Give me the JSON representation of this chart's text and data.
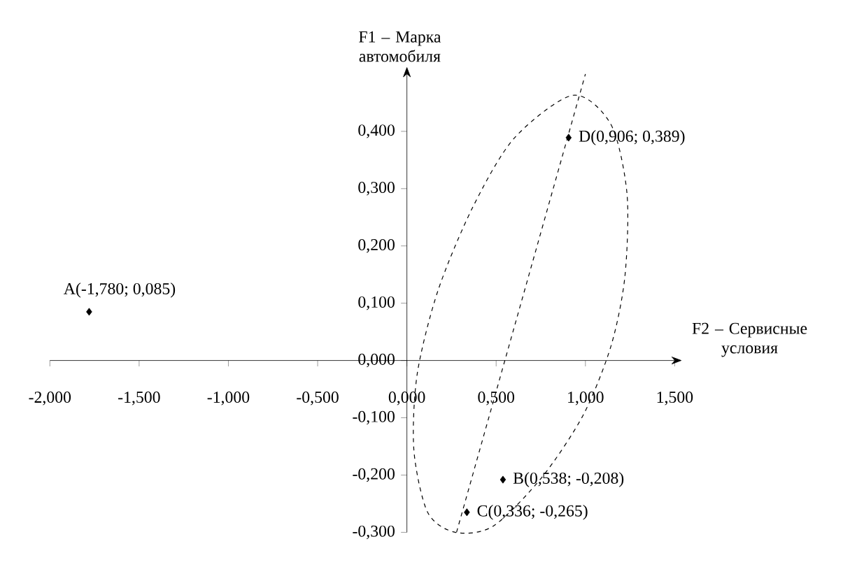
{
  "chart_data": {
    "type": "scatter",
    "xlabel": "F2 – Сервисные условия",
    "ylabel": "F1 – Марка автомобиля",
    "xlim": [
      -2,
      1.5
    ],
    "ylim": [
      -0.3,
      0.5
    ],
    "xticks": [
      {
        "value": -2,
        "label": "-2,000"
      },
      {
        "value": -1.5,
        "label": "-1,500"
      },
      {
        "value": -1,
        "label": "-1,000"
      },
      {
        "value": -0.5,
        "label": "-0,500"
      },
      {
        "value": 0,
        "label": "0,000"
      },
      {
        "value": 0.5,
        "label": "0,500"
      },
      {
        "value": 1,
        "label": "1,000"
      },
      {
        "value": 1.5,
        "label": "1,500"
      }
    ],
    "yticks": [
      {
        "value": -0.3,
        "label": "-0,300"
      },
      {
        "value": -0.2,
        "label": "-0,200"
      },
      {
        "value": -0.1,
        "label": "-0,100"
      },
      {
        "value": 0,
        "label": "0,000"
      },
      {
        "value": 0.1,
        "label": "0,100"
      },
      {
        "value": 0.2,
        "label": "0,200"
      },
      {
        "value": 0.3,
        "label": "0,300"
      },
      {
        "value": 0.4,
        "label": "0,400"
      }
    ],
    "series": [
      {
        "marker": "diamond",
        "color": "#000000",
        "x": [
          -1.78,
          0.538,
          0.336,
          0.906
        ],
        "values": [
          0.085,
          -0.208,
          -0.265,
          0.389
        ]
      },
      {
        "type": "line",
        "color": "#000000",
        "line_style": "dashed",
        "x": [
          0.278,
          1.0
        ],
        "values": [
          -0.3,
          0.5
        ]
      }
    ],
    "annotations": [
      {
        "text": "A(-1,780; 0,085)",
        "x": -1.78,
        "y": 0.085
      },
      {
        "text": "B(0,538; -0,208)",
        "x": 0.538,
        "y": -0.208
      },
      {
        "text": "C(0,336; -0,265)",
        "x": 0.336,
        "y": -0.265
      },
      {
        "text": "D(0,906; 0,389)",
        "x": 0.906,
        "y": 0.389
      }
    ]
  }
}
